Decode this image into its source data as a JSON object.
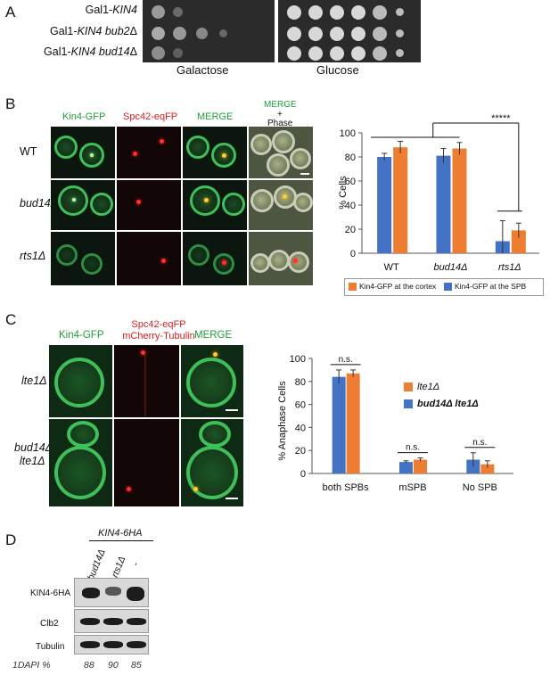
{
  "panelA": {
    "letter": "A",
    "strains": [
      {
        "prefix": "Gal1-",
        "gene": "KIN4",
        "suffix": ""
      },
      {
        "prefix": "Gal1-",
        "gene": "KIN4 bub2",
        "suffix": "Δ"
      },
      {
        "prefix": "Gal1-",
        "gene": "KIN4 bud14",
        "suffix": "Δ"
      }
    ],
    "conditions": [
      "Galactose",
      "Glucose"
    ]
  },
  "panelB": {
    "letter": "B",
    "columns": [
      "Kin4-GFP",
      "Spc42-eqFP",
      "MERGE",
      "MERGE",
      "+",
      "Phase"
    ],
    "rows": [
      "WT",
      "bud14Δ",
      "rts1Δ"
    ],
    "significance": "*****"
  },
  "panelC": {
    "letter": "C",
    "col1": "Kin4-GFP",
    "col2_line1": "Spc42-eqFP",
    "col2_line2": "mCherry-Tubulin",
    "col3": "MERGE",
    "rows": [
      [
        "lte1Δ"
      ],
      [
        "bud14Δ",
        "lte1Δ"
      ]
    ],
    "ns_label": "n.s."
  },
  "panelD": {
    "letter": "D",
    "header": "KIN4-6HA",
    "lanes": [
      "bud14Δ",
      "rts1Δ",
      "-"
    ],
    "blots": [
      "KIN4-6HA",
      "Clb2",
      "Tubulin"
    ],
    "dapi_label": "1DAPI %",
    "dapi_values": [
      "88",
      "90",
      "85"
    ]
  },
  "chart_data": [
    {
      "type": "bar",
      "categories": [
        "WT",
        "bud14Δ",
        "rts1Δ"
      ],
      "series": [
        {
          "name": "Kin4-GFP at the SPB",
          "color": "#4472c4",
          "values": [
            80,
            81,
            10
          ],
          "errors": [
            3,
            6,
            17
          ]
        },
        {
          "name": "Kin4-GFP at the cortex",
          "color": "#ed7d31",
          "values": [
            88,
            87,
            19
          ],
          "errors": [
            5,
            5,
            6
          ]
        }
      ],
      "ylabel": "% Cells",
      "ylim": [
        0,
        100
      ],
      "yticks": [
        "0",
        "20",
        "40",
        "60",
        "80",
        "100"
      ],
      "annotation": "*****",
      "legend": "bottom"
    },
    {
      "type": "bar",
      "categories": [
        "both SPBs",
        "mSPB",
        "No SPB"
      ],
      "series": [
        {
          "name": "bud14Δ lte1Δ",
          "color": "#4472c4",
          "values": [
            84,
            10,
            12
          ],
          "errors": [
            6,
            1,
            6
          ]
        },
        {
          "name": "lte1Δ",
          "color": "#ed7d31",
          "values": [
            87,
            12,
            8
          ],
          "errors": [
            3,
            1.5,
            3
          ]
        }
      ],
      "ylabel": "% Anaphase Cells",
      "ylim": [
        0,
        100
      ],
      "yticks": [
        "0",
        "20",
        "40",
        "60",
        "80",
        "100"
      ],
      "annotations": [
        "n.s.",
        "n.s.",
        "n.s."
      ],
      "legend": "top-right"
    }
  ]
}
